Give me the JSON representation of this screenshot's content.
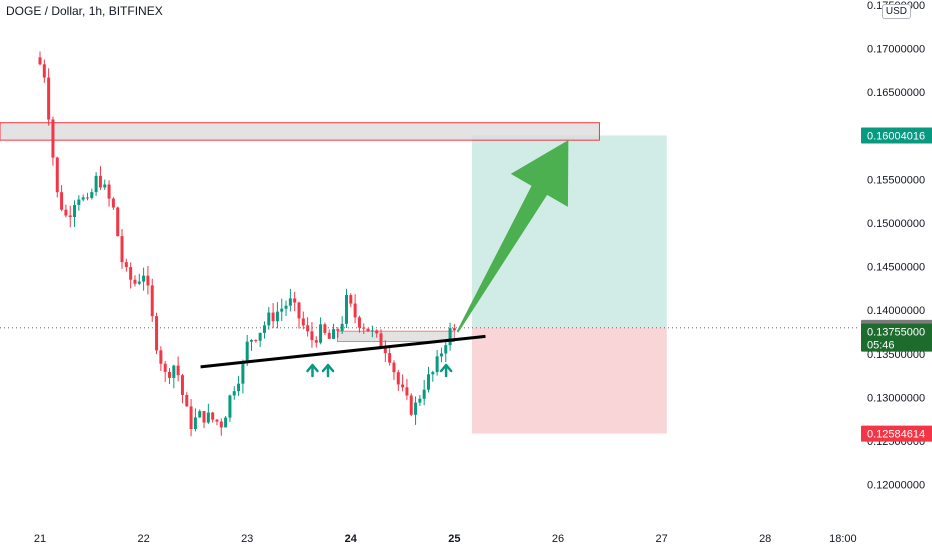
{
  "header": {
    "title": "DOGE / Dollar, 1h, BITFINEX",
    "currency": "USD"
  },
  "colors": {
    "up": "#089981",
    "down": "#f23645",
    "target_zone": "#d1ece7",
    "stop_zone": "#fad5d8",
    "resistance_box_fill": "#dcdcdc",
    "resistance_box_border": "#f23645",
    "arrow": "#4caf50",
    "trendline": "#000000",
    "badge_target": "#089981",
    "badge_stop": "#f23645",
    "badge_last": "#7b7b7b",
    "badge_current": "#1e6b2e"
  },
  "chart_data": {
    "type": "candlestick",
    "title": "DOGE / Dollar, 1h, BITFINEX",
    "y_axis": {
      "range": [
        0.1175,
        0.1755
      ],
      "ticks": [
        "0.17500000",
        "0.17000000",
        "0.16500000",
        "0.15500000",
        "0.15000000",
        "0.14500000",
        "0.14000000",
        "0.13500000",
        "0.13000000",
        "0.12500000",
        "0.12000000"
      ],
      "tick_values": [
        0.175,
        0.17,
        0.165,
        0.155,
        0.15,
        0.145,
        0.14,
        0.135,
        0.13,
        0.125,
        0.12
      ]
    },
    "x_axis": {
      "ticks": [
        "21",
        "22",
        "23",
        "24",
        "25",
        "26",
        "27",
        "28",
        "18:00"
      ],
      "tick_day_index": [
        0,
        1,
        2,
        3,
        4,
        5,
        6,
        7,
        7.75
      ]
    },
    "price_labels": {
      "target": "0.16004016",
      "last": "0.13797753",
      "current": "0.13755000",
      "countdown": "05:46",
      "stop": "0.12584614"
    },
    "levels": {
      "target": 0.16004016,
      "last": 0.13797753,
      "current": 0.13755,
      "stop": 0.12584614
    },
    "anchors": [
      [
        0.0,
        0.169
      ],
      [
        0.08,
        0.1675
      ],
      [
        0.14,
        0.161
      ],
      [
        0.2,
        0.1535
      ],
      [
        0.3,
        0.1505
      ],
      [
        0.4,
        0.1535
      ],
      [
        0.5,
        0.152
      ],
      [
        0.6,
        0.1555
      ],
      [
        0.75,
        0.1515
      ],
      [
        0.85,
        0.1445
      ],
      [
        0.95,
        0.143
      ],
      [
        1.05,
        0.1445
      ],
      [
        1.15,
        0.137
      ],
      [
        1.25,
        0.1325
      ],
      [
        1.35,
        0.134
      ],
      [
        1.45,
        0.1285
      ],
      [
        1.5,
        0.127
      ],
      [
        1.55,
        0.1275
      ],
      [
        1.6,
        0.128
      ],
      [
        1.7,
        0.1275
      ],
      [
        1.8,
        0.127
      ],
      [
        1.9,
        0.131
      ],
      [
        2.0,
        0.1335
      ],
      [
        2.05,
        0.1365
      ],
      [
        2.15,
        0.1375
      ],
      [
        2.25,
        0.139
      ],
      [
        2.35,
        0.14
      ],
      [
        2.45,
        0.141
      ],
      [
        2.55,
        0.139
      ],
      [
        2.65,
        0.1365
      ],
      [
        2.75,
        0.1375
      ],
      [
        2.85,
        0.1365
      ],
      [
        2.95,
        0.1385
      ],
      [
        3.0,
        0.141
      ],
      [
        3.1,
        0.139
      ],
      [
        3.2,
        0.138
      ],
      [
        3.3,
        0.1365
      ],
      [
        3.4,
        0.1355
      ],
      [
        3.45,
        0.1335
      ],
      [
        3.5,
        0.1315
      ],
      [
        3.6,
        0.129
      ],
      [
        3.65,
        0.1285
      ],
      [
        3.75,
        0.1315
      ],
      [
        3.85,
        0.133
      ],
      [
        3.95,
        0.1365
      ],
      [
        4.0,
        0.1375
      ]
    ],
    "trendline": {
      "from": [
        1.55,
        0.1335
      ],
      "to": [
        4.3,
        0.137
      ]
    },
    "resistance_zone": {
      "y": [
        0.1595,
        0.1615
      ],
      "x": [
        -0.4,
        5.4
      ]
    },
    "target_zone": {
      "y": [
        0.13797753,
        0.16004016
      ],
      "x": [
        4.17,
        6.05
      ]
    },
    "stop_zone": {
      "y": [
        0.12584614,
        0.13797753
      ],
      "x": [
        4.17,
        6.05
      ]
    },
    "support_box": {
      "y": [
        0.1364,
        0.1376
      ],
      "x": [
        2.87,
        4.0
      ]
    },
    "arrow": {
      "from": [
        4.03,
        0.1375
      ],
      "to": [
        5.1,
        0.1595
      ]
    },
    "up_markers_x": [
      2.63,
      2.78,
      3.92
    ]
  }
}
